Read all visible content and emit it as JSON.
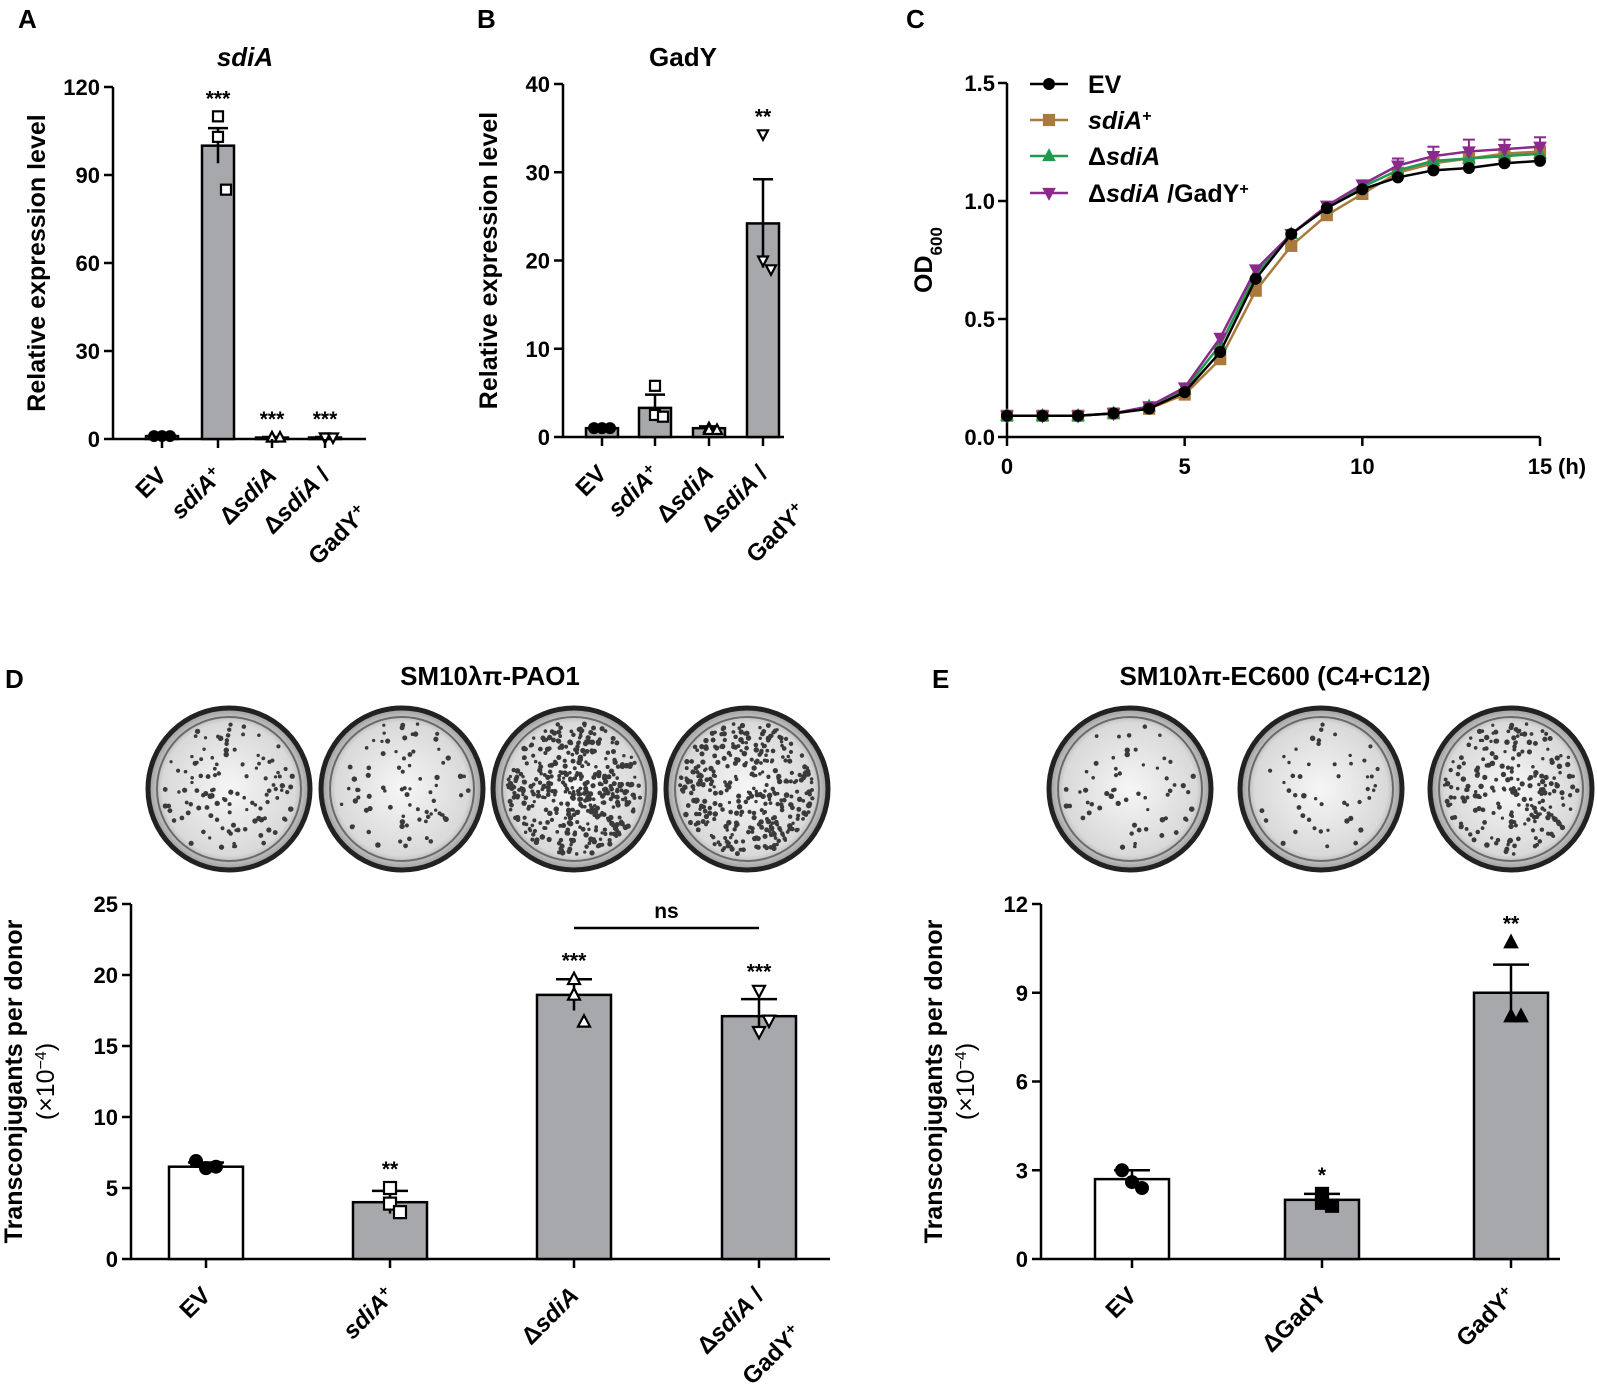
{
  "colors": {
    "bar_gray": "#a6a8ac",
    "bar_white": "#ffffff",
    "ev": "#000000",
    "sdiA_plus": "#a87a3c",
    "delta_sdiA": "#1f9a4f",
    "delta_sdiA_gady": "#8a2a8a"
  },
  "panel_letters": {
    "a": "A",
    "b": "B",
    "c": "C",
    "d": "D",
    "e": "E"
  },
  "cat_parts": {
    "ev": "EV",
    "sdiA": "sdiA",
    "plus": "+",
    "delta": "Δ",
    "slash": " /",
    "gady": "GadY",
    "delta_gady": "ΔGadY"
  },
  "chart_data": [
    {
      "panel": "A",
      "type": "bar",
      "title": "sdiA",
      "ylabel": "Relative expression level",
      "ylim": [
        0,
        120
      ],
      "yticks": [
        0,
        30,
        60,
        90,
        120
      ],
      "categories": [
        "EV",
        "sdiA+",
        "ΔsdiA",
        "ΔsdiA / GadY+"
      ],
      "values": [
        1,
        100,
        0.5,
        0.5
      ],
      "errors": [
        0.2,
        6,
        0.2,
        0.2
      ],
      "points": [
        [
          1,
          1,
          1
        ],
        [
          110,
          103,
          85
        ],
        [
          0.5,
          0.5,
          0.5
        ],
        [
          0.5,
          0.5,
          0.5
        ]
      ],
      "markers": [
        "circle",
        "square",
        "triangle",
        "triangle-down"
      ],
      "significance": [
        "",
        "***",
        "***",
        "***"
      ]
    },
    {
      "panel": "B",
      "type": "bar",
      "title": "GadY",
      "ylabel": "Relative expression level",
      "ylim": [
        0,
        40
      ],
      "yticks": [
        0,
        10,
        20,
        30,
        40
      ],
      "categories": [
        "EV",
        "sdiA+",
        "ΔsdiA",
        "ΔsdiA / GadY+"
      ],
      "values": [
        1,
        3.3,
        1,
        24.2
      ],
      "errors": [
        0.2,
        1.5,
        0.2,
        5
      ],
      "points": [
        [
          1,
          1,
          1
        ],
        [
          5.8,
          2.5,
          2.3
        ],
        [
          1,
          0.8,
          0.8
        ],
        [
          34.3,
          20,
          19
        ]
      ],
      "markers": [
        "circle",
        "square",
        "triangle",
        "triangle-down"
      ],
      "significance": [
        "",
        "",
        "",
        "**"
      ]
    },
    {
      "panel": "C",
      "type": "line",
      "ylabel": "OD600",
      "xlabel": "(h)",
      "xlim": [
        0,
        15
      ],
      "xticks": [
        0,
        5,
        10,
        15
      ],
      "ylim": [
        0,
        1.5
      ],
      "yticks": [
        0.0,
        0.5,
        1.0,
        1.5
      ],
      "x": [
        0,
        1,
        2,
        3,
        4,
        5,
        6,
        7,
        8,
        9,
        10,
        11,
        12,
        13,
        14,
        15
      ],
      "series": [
        {
          "name": "EV",
          "marker": "circle",
          "values": [
            0.09,
            0.09,
            0.09,
            0.1,
            0.12,
            0.19,
            0.36,
            0.67,
            0.86,
            0.97,
            1.05,
            1.1,
            1.13,
            1.14,
            1.16,
            1.17
          ]
        },
        {
          "name": "sdiA+",
          "marker": "square",
          "values": [
            0.09,
            0.09,
            0.09,
            0.1,
            0.12,
            0.18,
            0.33,
            0.62,
            0.81,
            0.94,
            1.03,
            1.12,
            1.16,
            1.18,
            1.2,
            1.21
          ]
        },
        {
          "name": "ΔsdiA",
          "marker": "triangle",
          "values": [
            0.09,
            0.09,
            0.09,
            0.1,
            0.13,
            0.2,
            0.39,
            0.69,
            0.86,
            0.97,
            1.06,
            1.13,
            1.17,
            1.18,
            1.19,
            1.2
          ]
        },
        {
          "name": "ΔsdiA / GadY+",
          "marker": "triangle-down",
          "values": [
            0.09,
            0.09,
            0.09,
            0.1,
            0.13,
            0.21,
            0.42,
            0.71,
            0.86,
            0.98,
            1.07,
            1.15,
            1.19,
            1.21,
            1.22,
            1.23
          ]
        }
      ],
      "error_caps": [
        0,
        0,
        0,
        0,
        0,
        0,
        0,
        0,
        0,
        0,
        0,
        0.03,
        0.04,
        0.05,
        0.04,
        0.04
      ]
    },
    {
      "panel": "D",
      "type": "bar",
      "title": "SM10λπ-PAO1",
      "ylabel": "Transconjugants per donor",
      "ylabel2": "(×10",
      "ylabel_sup": "−4",
      "ylabel_end": ")",
      "ylim": [
        0,
        25
      ],
      "yticks": [
        0,
        5,
        10,
        15,
        20,
        25
      ],
      "categories": [
        "EV",
        "sdiA+",
        "ΔsdiA",
        "ΔsdiA / GadY+"
      ],
      "values": [
        6.5,
        4,
        18.6,
        17.1
      ],
      "errors": [
        0.3,
        0.8,
        1.1,
        1.2
      ],
      "points": [
        [
          6.9,
          6.4,
          6.5
        ],
        [
          5,
          3.9,
          3.3
        ],
        [
          19.7,
          18.6,
          16.7
        ],
        [
          18.9,
          16,
          16.8
        ]
      ],
      "markers": [
        "circle",
        "square",
        "triangle",
        "triangle-down"
      ],
      "fills": [
        "#ffffff",
        "#a6a8ac",
        "#a6a8ac",
        "#a6a8ac"
      ],
      "significance": [
        "",
        "**",
        "***",
        "***"
      ],
      "comparison": {
        "label": "ns",
        "from": 2,
        "to": 3
      }
    },
    {
      "panel": "E",
      "type": "bar",
      "title": "SM10λπ-EC600 (C4+C12)",
      "ylabel": "Transconjugants per donor",
      "ylabel2": "(×10",
      "ylabel_sup": "−4",
      "ylabel_end": ")",
      "ylim": [
        0,
        12
      ],
      "yticks": [
        0,
        3,
        6,
        9,
        12
      ],
      "categories": [
        "EV",
        "ΔGadY",
        "GadY+"
      ],
      "values": [
        2.7,
        2,
        9
      ],
      "errors": [
        0.3,
        0.2,
        0.95
      ],
      "points": [
        [
          3,
          2.6,
          2.4
        ],
        [
          2.2,
          1.9,
          1.8
        ],
        [
          10.7,
          8.2,
          8.2
        ]
      ],
      "markers": [
        "circle",
        "square",
        "triangle"
      ],
      "fills": [
        "#ffffff",
        "#a6a8ac",
        "#a6a8ac"
      ],
      "significance": [
        "",
        "*",
        "**"
      ]
    }
  ]
}
